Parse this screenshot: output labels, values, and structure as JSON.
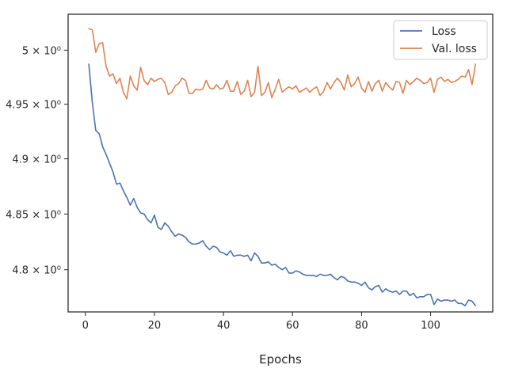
{
  "chart_data": {
    "type": "line",
    "title": "",
    "xlabel": "Epochs",
    "ylabel": "",
    "xlim": [
      -5,
      118
    ],
    "ylim": [
      4.7625,
      5.0335
    ],
    "y_scale": "log",
    "grid": false,
    "legend_placement": "top-right",
    "xticks": [
      0,
      20,
      40,
      60,
      80,
      100
    ],
    "xtick_labels": [
      "0",
      "20",
      "40",
      "60",
      "80",
      "100"
    ],
    "yticks": [
      4.8,
      4.85,
      4.9,
      4.95,
      5.0
    ],
    "ytick_labels": [
      "4.8 × 10⁰",
      "4.85 × 10⁰",
      "4.9 × 10⁰",
      "4.95 × 10⁰",
      "5 × 10⁰"
    ],
    "colors": {
      "Loss": "#4c72b0",
      "Val. loss": "#dd8452"
    },
    "series": [
      {
        "name": "Loss",
        "x": [
          1,
          2,
          3,
          4,
          5,
          6,
          7,
          8,
          9,
          10,
          11,
          12,
          13,
          14,
          15,
          16,
          17,
          18,
          19,
          20,
          21,
          22,
          23,
          24,
          25,
          26,
          27,
          28,
          29,
          30,
          31,
          32,
          33,
          34,
          35,
          36,
          37,
          38,
          39,
          40,
          41,
          42,
          43,
          44,
          45,
          46,
          47,
          48,
          49,
          50,
          51,
          52,
          53,
          54,
          55,
          56,
          57,
          58,
          59,
          60,
          61,
          62,
          63,
          64,
          65,
          66,
          67,
          68,
          69,
          70,
          71,
          72,
          73,
          74,
          75,
          76,
          77,
          78,
          79,
          80,
          81,
          82,
          83,
          84,
          85,
          86,
          87,
          88,
          89,
          90,
          91,
          92,
          93,
          94,
          95,
          96,
          97,
          98,
          99,
          100,
          101,
          102,
          103,
          104,
          105,
          106,
          107,
          108,
          109,
          110,
          111,
          112,
          113
        ],
        "values": [
          4.987,
          4.952,
          4.926,
          4.923,
          4.911,
          4.904,
          4.896,
          4.888,
          4.877,
          4.878,
          4.871,
          4.865,
          4.858,
          4.864,
          4.856,
          4.851,
          4.85,
          4.845,
          4.842,
          4.849,
          4.838,
          4.836,
          4.842,
          4.839,
          4.834,
          4.83,
          4.832,
          4.831,
          4.829,
          4.825,
          4.823,
          4.823,
          4.824,
          4.826,
          4.821,
          4.818,
          4.821,
          4.82,
          4.816,
          4.815,
          4.813,
          4.817,
          4.812,
          4.813,
          4.813,
          4.812,
          4.813,
          4.808,
          4.815,
          4.812,
          4.806,
          4.806,
          4.807,
          4.804,
          4.805,
          4.802,
          4.8,
          4.802,
          4.797,
          4.797,
          4.799,
          4.798,
          4.796,
          4.795,
          4.795,
          4.795,
          4.794,
          4.796,
          4.795,
          4.795,
          4.796,
          4.793,
          4.791,
          4.794,
          4.793,
          4.79,
          4.789,
          4.789,
          4.788,
          4.786,
          4.789,
          4.784,
          4.782,
          4.785,
          4.786,
          4.78,
          4.783,
          4.781,
          4.78,
          4.781,
          4.778,
          4.781,
          4.781,
          4.777,
          4.779,
          4.775,
          4.776,
          4.776,
          4.778,
          4.778,
          4.769,
          4.774,
          4.772,
          4.773,
          4.773,
          4.772,
          4.773,
          4.77,
          4.77,
          4.768,
          4.773,
          4.772,
          4.768
        ]
      },
      {
        "name": "Val. loss",
        "x": [
          1,
          2,
          3,
          4,
          5,
          6,
          7,
          8,
          9,
          10,
          11,
          12,
          13,
          14,
          15,
          16,
          17,
          18,
          19,
          20,
          21,
          22,
          23,
          24,
          25,
          26,
          27,
          28,
          29,
          30,
          31,
          32,
          33,
          34,
          35,
          36,
          37,
          38,
          39,
          40,
          41,
          42,
          43,
          44,
          45,
          46,
          47,
          48,
          49,
          50,
          51,
          52,
          53,
          54,
          55,
          56,
          57,
          58,
          59,
          60,
          61,
          62,
          63,
          64,
          65,
          66,
          67,
          68,
          69,
          70,
          71,
          72,
          73,
          74,
          75,
          76,
          77,
          78,
          79,
          80,
          81,
          82,
          83,
          84,
          85,
          86,
          87,
          88,
          89,
          90,
          91,
          92,
          93,
          94,
          95,
          96,
          97,
          98,
          99,
          100,
          101,
          102,
          103,
          104,
          105,
          106,
          107,
          108,
          109,
          110,
          111,
          112,
          113
        ],
        "values": [
          5.02,
          5.019,
          4.998,
          5.006,
          5.007,
          4.985,
          4.976,
          4.978,
          4.969,
          4.974,
          4.961,
          4.955,
          4.976,
          4.967,
          4.963,
          4.984,
          4.972,
          4.968,
          4.974,
          4.971,
          4.973,
          4.974,
          4.97,
          4.959,
          4.961,
          4.967,
          4.969,
          4.974,
          4.972,
          4.96,
          4.96,
          4.964,
          4.963,
          4.964,
          4.972,
          4.965,
          4.964,
          4.968,
          4.964,
          4.965,
          4.972,
          4.962,
          4.962,
          4.971,
          4.959,
          4.962,
          4.972,
          4.957,
          4.961,
          4.985,
          4.958,
          4.961,
          4.97,
          4.956,
          4.964,
          4.973,
          4.961,
          4.964,
          4.966,
          4.964,
          4.967,
          4.961,
          4.963,
          4.965,
          4.961,
          4.964,
          4.966,
          4.958,
          4.962,
          4.97,
          4.964,
          4.97,
          4.974,
          4.97,
          4.963,
          4.977,
          4.966,
          4.969,
          4.975,
          4.965,
          4.961,
          4.971,
          4.962,
          4.969,
          4.972,
          4.962,
          4.97,
          4.966,
          4.963,
          4.971,
          4.97,
          4.96,
          4.972,
          4.968,
          4.971,
          4.974,
          4.972,
          4.969,
          4.97,
          4.974,
          4.961,
          4.973,
          4.975,
          4.971,
          4.973,
          4.97,
          4.971,
          4.973,
          4.976,
          4.975,
          4.982,
          4.968,
          4.987
        ]
      }
    ]
  }
}
